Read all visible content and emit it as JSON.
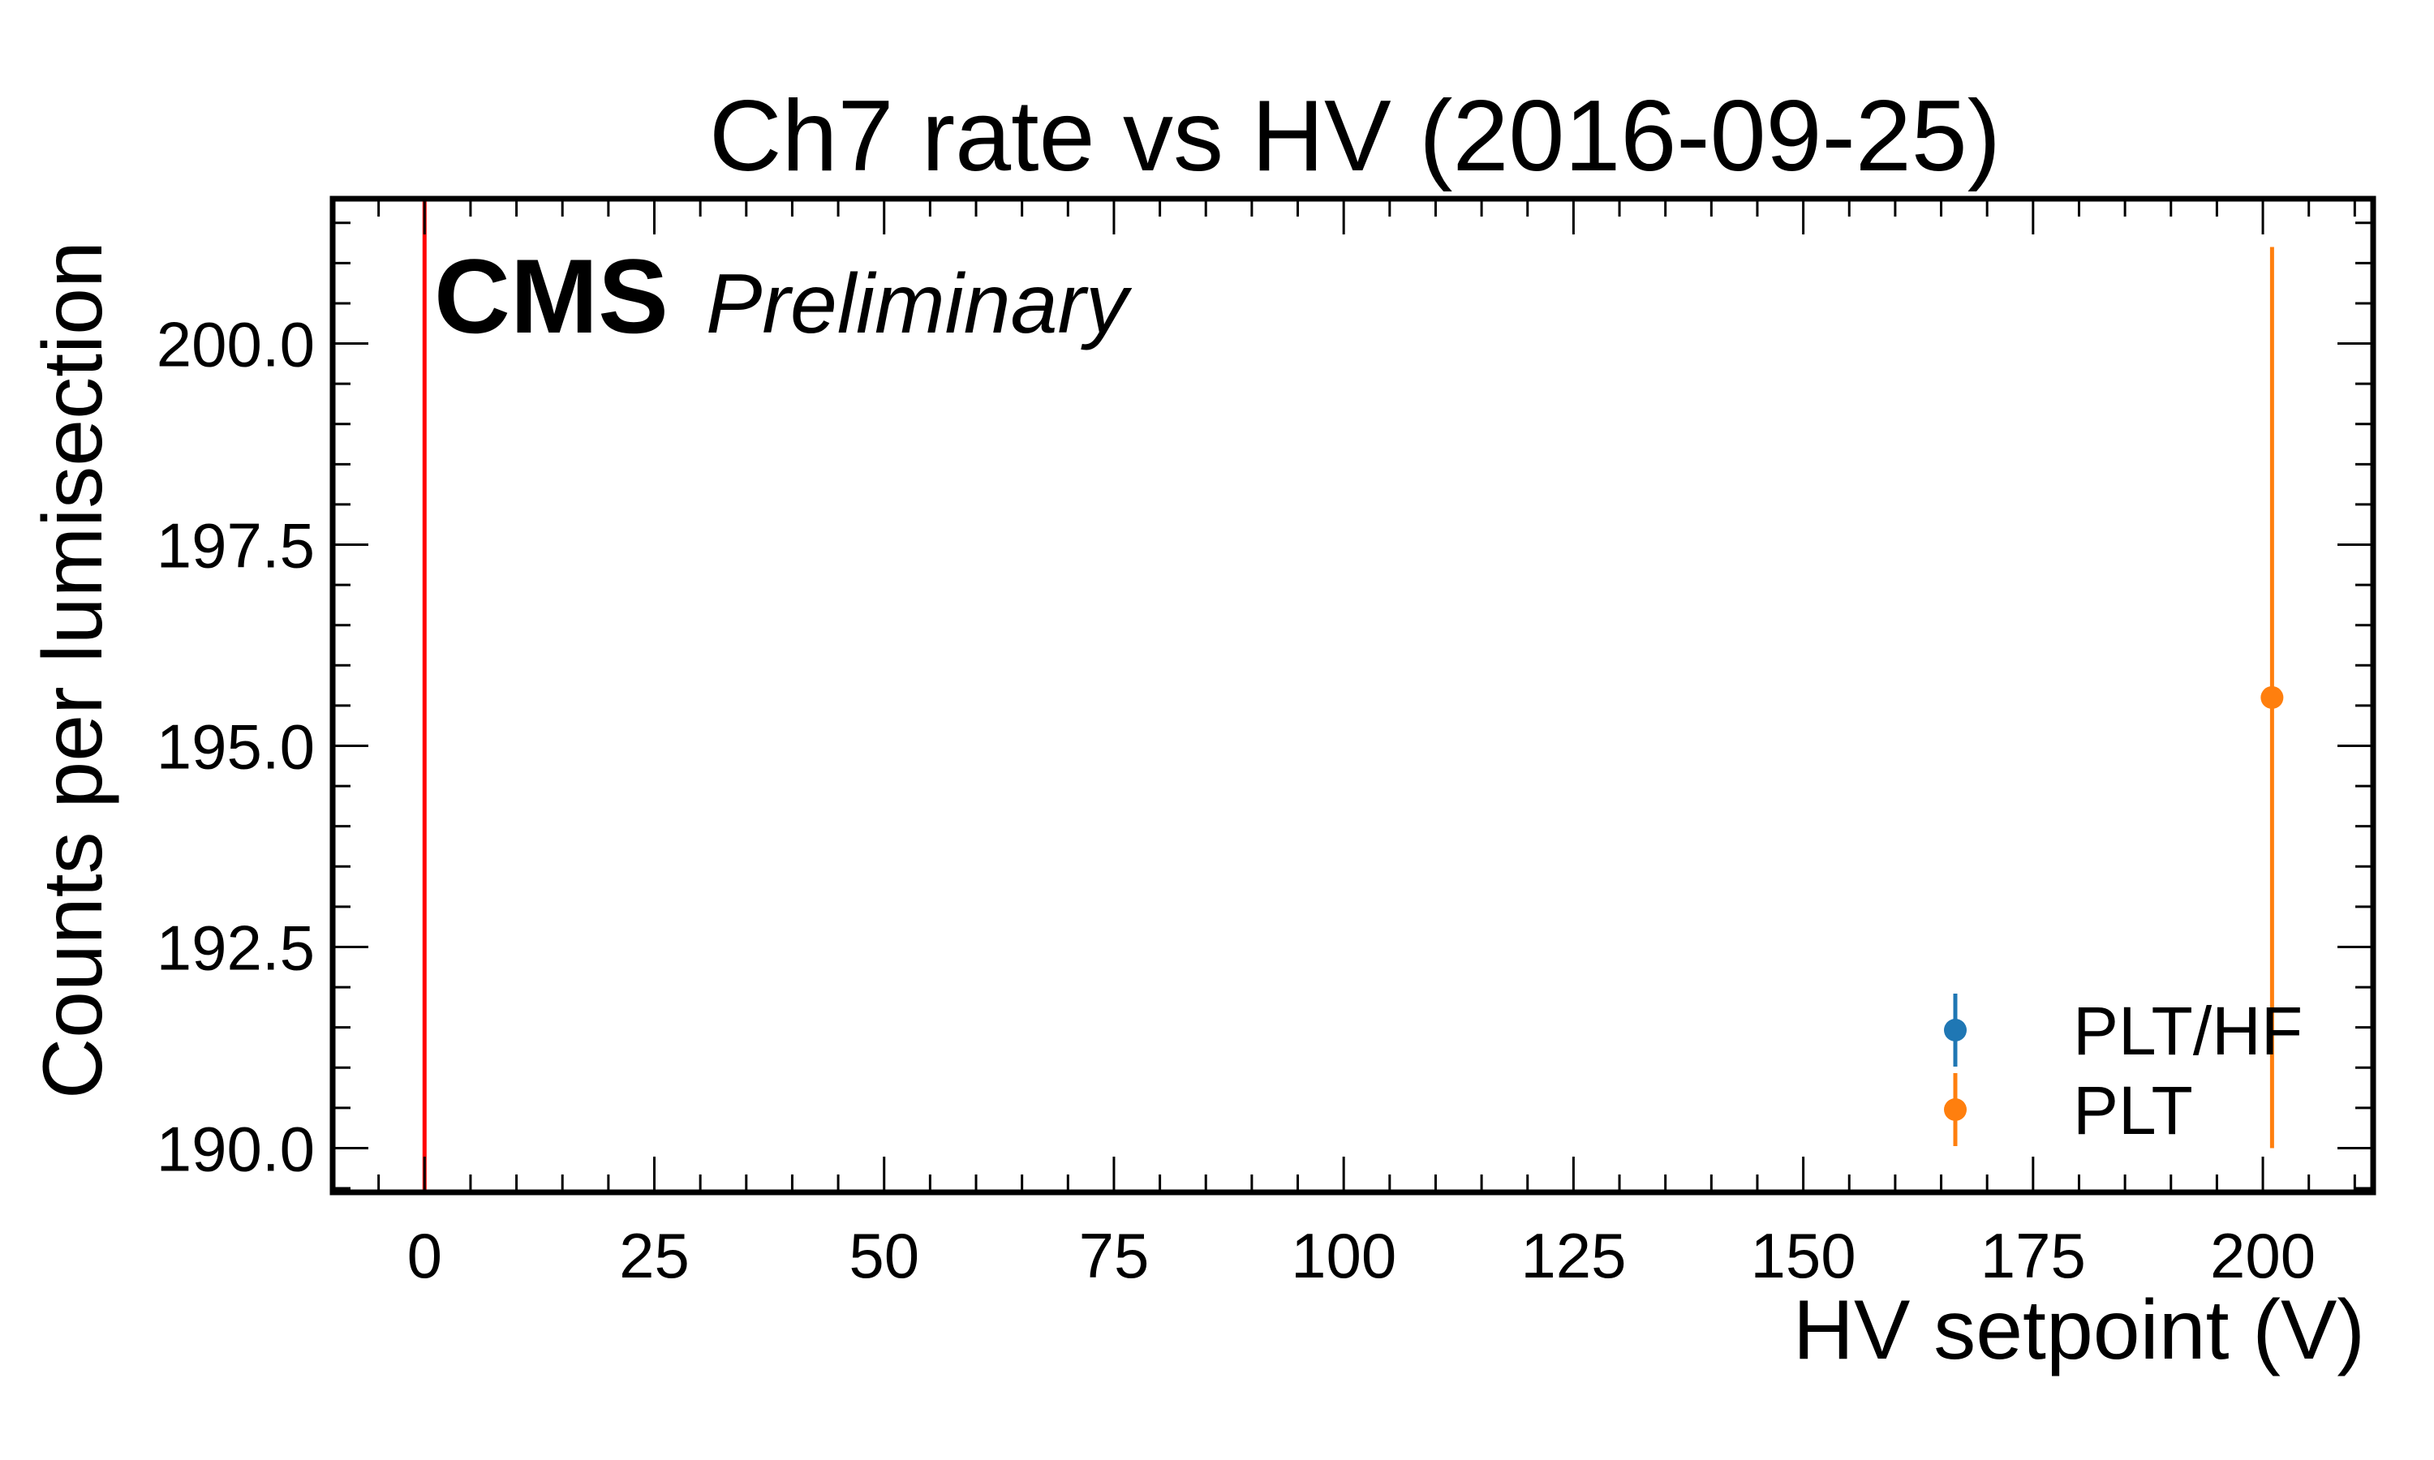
{
  "chart_data": {
    "type": "scatter",
    "title": "Ch7 rate vs HV (2016-09-25)",
    "xlabel": "HV setpoint (V)",
    "ylabel": "Counts per lumisection",
    "experiment_label": "CMS",
    "status_label": "Preliminary",
    "xlim": [
      -10,
      212
    ],
    "ylim": [
      189.45,
      201.8
    ],
    "x_ticks": [
      0,
      25,
      50,
      75,
      100,
      125,
      150,
      175,
      200
    ],
    "x_tick_labels": [
      "0",
      "25",
      "50",
      "75",
      "100",
      "125",
      "150",
      "175",
      "200"
    ],
    "y_ticks": [
      190.0,
      192.5,
      195.0,
      197.5,
      200.0
    ],
    "y_tick_labels": [
      "190.0",
      "192.5",
      "195.0",
      "197.5",
      "200.0"
    ],
    "grid": false,
    "legend_position": "lower-right",
    "reference_line": {
      "x": 0,
      "color": "#ff0000"
    },
    "series": [
      {
        "name": "PLT/HF",
        "color": "#1f77b4",
        "x": [],
        "y": [],
        "yerr": []
      },
      {
        "name": "PLT",
        "color": "#ff7f0e",
        "x": [
          201
        ],
        "y": [
          195.6
        ],
        "yerr": [
          5.6
        ]
      }
    ]
  }
}
